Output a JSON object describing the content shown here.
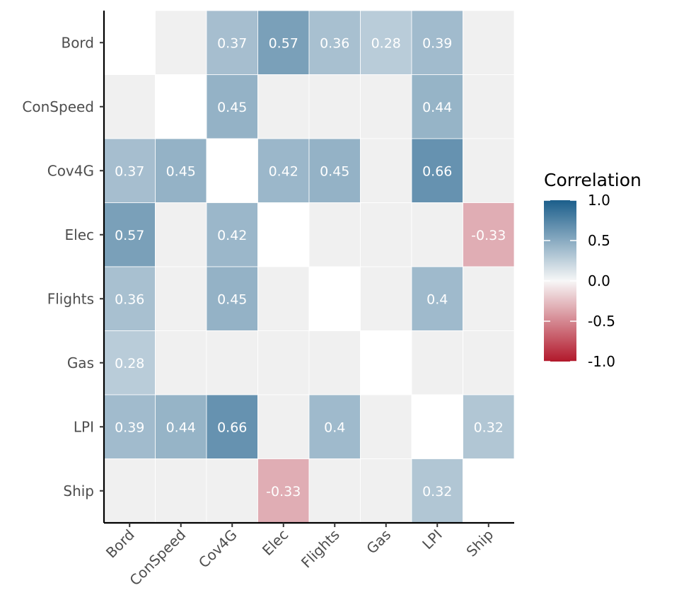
{
  "chart_data": {
    "type": "heatmap",
    "title": "",
    "xlabel": "",
    "ylabel": "",
    "x_categories": [
      "Bord",
      "ConSpeed",
      "Cov4G",
      "Elec",
      "Flights",
      "Gas",
      "LPI",
      "Ship"
    ],
    "y_categories": [
      "Bord",
      "ConSpeed",
      "Cov4G",
      "Elec",
      "Flights",
      "Gas",
      "LPI",
      "Ship"
    ],
    "values": [
      [
        null,
        null,
        0.37,
        0.57,
        0.36,
        0.28,
        0.39,
        null
      ],
      [
        null,
        null,
        0.45,
        null,
        null,
        null,
        0.44,
        null
      ],
      [
        0.37,
        0.45,
        null,
        0.42,
        0.45,
        null,
        0.66,
        null
      ],
      [
        0.57,
        null,
        0.42,
        null,
        null,
        null,
        null,
        -0.33
      ],
      [
        0.36,
        null,
        0.45,
        null,
        null,
        null,
        0.4,
        null
      ],
      [
        0.28,
        null,
        null,
        null,
        null,
        null,
        null,
        null
      ],
      [
        0.39,
        0.44,
        0.66,
        null,
        0.4,
        null,
        null,
        0.32
      ],
      [
        null,
        null,
        null,
        -0.33,
        null,
        null,
        0.32,
        null
      ]
    ],
    "labels": [
      [
        "",
        "",
        "0.37",
        "0.57",
        "0.36",
        "0.28",
        "0.39",
        ""
      ],
      [
        "",
        "",
        "0.45",
        "",
        "",
        "",
        "0.44",
        ""
      ],
      [
        "0.37",
        "0.45",
        "",
        "0.42",
        "0.45",
        "",
        "0.66",
        ""
      ],
      [
        "0.57",
        "",
        "0.42",
        "",
        "",
        "",
        "",
        "-0.33"
      ],
      [
        "0.36",
        "",
        "0.45",
        "",
        "",
        "",
        "0.4",
        ""
      ],
      [
        "0.28",
        "",
        "",
        "",
        "",
        "",
        "",
        ""
      ],
      [
        "0.39",
        "0.44",
        "0.66",
        "",
        "0.4",
        "",
        "",
        "0.32"
      ],
      [
        "",
        "",
        "",
        "-0.33",
        "",
        "",
        "0.32",
        ""
      ]
    ],
    "legend": {
      "title": "Correlation",
      "ticks": [
        "1.0",
        "0.5",
        "0.0",
        "-0.5",
        "-1.0"
      ],
      "tick_values": [
        1,
        0.5,
        0,
        -0.5,
        -1
      ],
      "range": [
        -1,
        1
      ],
      "placement": "right"
    },
    "colors": {
      "high": "#1b5e8b",
      "mid": "#f7f7f7",
      "low": "#b2182b",
      "non_significant": "#f0f0f0",
      "diagonal": "#ffffff"
    },
    "grid": false
  }
}
